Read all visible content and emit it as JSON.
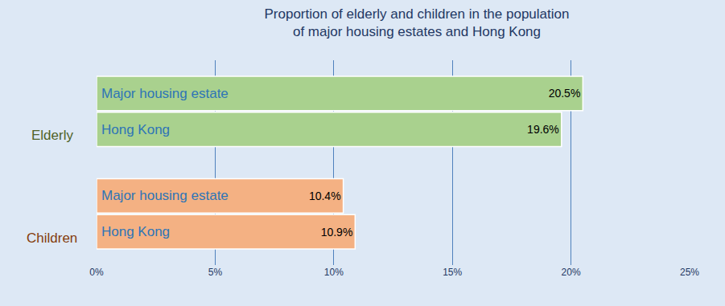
{
  "chart_data": {
    "type": "bar",
    "orientation": "horizontal",
    "title": "Proportion of elderly and children in the population\nof major housing estates and Hong Kong",
    "categories": [
      "Elderly",
      "Children"
    ],
    "series": [
      {
        "name": "Major housing estate",
        "values": [
          20.5,
          10.4
        ],
        "value_labels": [
          "20.5%",
          "10.4%"
        ],
        "colors": [
          "#a9d18e",
          "#f4b183"
        ]
      },
      {
        "name": "Hong Kong",
        "values": [
          19.6,
          10.9
        ],
        "value_labels": [
          "19.6%",
          "10.9%"
        ],
        "colors": [
          "#a9d18e",
          "#f4b183"
        ]
      }
    ],
    "xlim": [
      0,
      25
    ],
    "xticks": [
      {
        "value": 0,
        "label": "0%"
      },
      {
        "value": 5,
        "label": "5%"
      },
      {
        "value": 10,
        "label": "10%"
      },
      {
        "value": 15,
        "label": "15%"
      },
      {
        "value": 20,
        "label": "20%"
      },
      {
        "value": 25,
        "label": "25%"
      }
    ],
    "grid": true,
    "data_labels": true
  }
}
